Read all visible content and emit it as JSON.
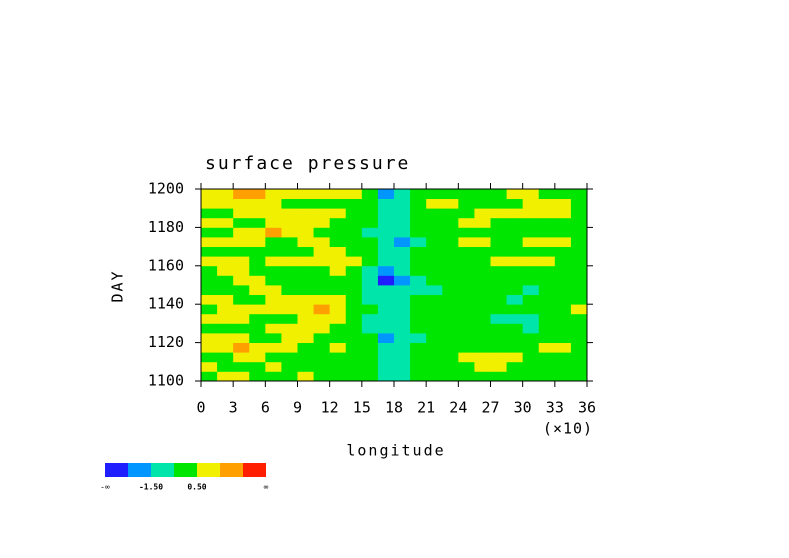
{
  "chart_data": {
    "type": "heatmap",
    "title": "surface pressure",
    "xlabel": "longitude",
    "xlabel_note": "(×10)",
    "ylabel": "DAY",
    "xlim": [
      0,
      36
    ],
    "ylim": [
      1100,
      1200
    ],
    "xticks": [
      0,
      3,
      6,
      9,
      12,
      15,
      18,
      21,
      24,
      27,
      30,
      33,
      36
    ],
    "yticks": [
      1100,
      1120,
      1140,
      1160,
      1180,
      1200
    ],
    "xbins": [
      0,
      1.5,
      3,
      4.5,
      6,
      7.5,
      9,
      10.5,
      12,
      13.5,
      15,
      16.5,
      18,
      19.5,
      21,
      22.5,
      24,
      25.5,
      27,
      28.5,
      30,
      31.5,
      33,
      34.5,
      36
    ],
    "ybins": [
      1100,
      1105,
      1110,
      1115,
      1120,
      1125,
      1130,
      1135,
      1140,
      1145,
      1150,
      1155,
      1160,
      1165,
      1170,
      1175,
      1180,
      1185,
      1190,
      1195,
      1200
    ],
    "values": [
      [
        0,
        1,
        1,
        0,
        0,
        0,
        1,
        0,
        0,
        0,
        0,
        -1,
        -1,
        0,
        0,
        0,
        0,
        0,
        0,
        0,
        0,
        0,
        0,
        0
      ],
      [
        1,
        0,
        0,
        0,
        1,
        0,
        0,
        0,
        0,
        0,
        0,
        -1,
        -1,
        0,
        0,
        0,
        0,
        1,
        1,
        0,
        0,
        0,
        0,
        0
      ],
      [
        0,
        0,
        1,
        1,
        0,
        0,
        0,
        0,
        0,
        0,
        0,
        -1,
        -1,
        0,
        0,
        0,
        1,
        1,
        1,
        1,
        0,
        0,
        0,
        0
      ],
      [
        1,
        1,
        2,
        1,
        1,
        1,
        0,
        0,
        1,
        0,
        0,
        -1,
        -1,
        0,
        0,
        0,
        0,
        0,
        0,
        0,
        0,
        1,
        1,
        0
      ],
      [
        1,
        1,
        1,
        0,
        0,
        1,
        1,
        0,
        0,
        0,
        0,
        -2,
        -1,
        -1,
        0,
        0,
        0,
        0,
        0,
        0,
        0,
        0,
        0,
        0
      ],
      [
        0,
        0,
        0,
        0,
        1,
        1,
        1,
        1,
        0,
        0,
        -1,
        -1,
        -1,
        0,
        0,
        0,
        0,
        0,
        0,
        0,
        -1,
        0,
        0,
        0
      ],
      [
        1,
        1,
        1,
        0,
        0,
        0,
        1,
        1,
        1,
        0,
        -1,
        -1,
        -1,
        0,
        0,
        0,
        0,
        0,
        -1,
        -1,
        -1,
        0,
        0,
        0
      ],
      [
        0,
        1,
        1,
        1,
        1,
        1,
        1,
        2,
        1,
        0,
        0,
        -1,
        -1,
        0,
        0,
        0,
        0,
        0,
        0,
        0,
        0,
        0,
        0,
        1
      ],
      [
        1,
        1,
        0,
        0,
        1,
        1,
        1,
        1,
        1,
        0,
        -1,
        -1,
        -1,
        0,
        0,
        0,
        0,
        0,
        0,
        -1,
        0,
        0,
        0,
        0
      ],
      [
        0,
        0,
        0,
        1,
        1,
        0,
        0,
        0,
        0,
        0,
        -1,
        -1,
        -1,
        -1,
        -1,
        0,
        0,
        0,
        0,
        0,
        -1,
        0,
        0,
        0
      ],
      [
        0,
        0,
        1,
        1,
        0,
        0,
        0,
        0,
        0,
        0,
        -1,
        -3,
        -2,
        -1,
        0,
        0,
        0,
        0,
        0,
        0,
        0,
        0,
        0,
        0
      ],
      [
        0,
        1,
        1,
        0,
        0,
        0,
        0,
        0,
        1,
        0,
        -1,
        -2,
        -1,
        0,
        0,
        0,
        0,
        0,
        0,
        0,
        0,
        0,
        0,
        0
      ],
      [
        1,
        1,
        1,
        0,
        1,
        1,
        1,
        1,
        1,
        1,
        0,
        -1,
        -1,
        0,
        0,
        0,
        0,
        0,
        1,
        1,
        1,
        1,
        0,
        0
      ],
      [
        0,
        0,
        0,
        0,
        0,
        0,
        0,
        1,
        1,
        0,
        0,
        -1,
        -1,
        0,
        0,
        0,
        0,
        0,
        0,
        0,
        0,
        0,
        0,
        0
      ],
      [
        1,
        1,
        1,
        1,
        0,
        0,
        1,
        1,
        0,
        0,
        0,
        -1,
        -2,
        -1,
        0,
        0,
        1,
        1,
        0,
        0,
        1,
        1,
        1,
        0
      ],
      [
        0,
        0,
        1,
        1,
        2,
        1,
        1,
        0,
        0,
        0,
        -1,
        -1,
        -1,
        0,
        0,
        0,
        0,
        0,
        0,
        0,
        0,
        0,
        0,
        0
      ],
      [
        1,
        1,
        0,
        0,
        1,
        1,
        1,
        1,
        0,
        0,
        0,
        -1,
        -1,
        0,
        0,
        0,
        1,
        1,
        0,
        0,
        0,
        0,
        0,
        0
      ],
      [
        0,
        0,
        1,
        1,
        1,
        1,
        1,
        1,
        1,
        0,
        0,
        -1,
        -1,
        0,
        0,
        0,
        0,
        1,
        1,
        1,
        1,
        1,
        1,
        0
      ],
      [
        1,
        1,
        1,
        1,
        1,
        0,
        0,
        0,
        0,
        0,
        0,
        -1,
        -1,
        0,
        1,
        1,
        0,
        0,
        0,
        0,
        1,
        1,
        1,
        0
      ],
      [
        1,
        1,
        2,
        2,
        1,
        1,
        1,
        1,
        1,
        1,
        0,
        -2,
        -1,
        0,
        0,
        0,
        0,
        0,
        0,
        1,
        1,
        0,
        0,
        0
      ]
    ],
    "colorbar": {
      "colors": [
        "#1e1eff",
        "#0096ff",
        "#00e6aa",
        "#00e600",
        "#f0f000",
        "#ffa000",
        "#ff1e00"
      ],
      "ticks": [
        {
          "value": -1.5,
          "label": "-1.50"
        },
        {
          "value": 0.5,
          "label": "0.50"
        }
      ],
      "ends": [
        "-∞",
        "∞"
      ]
    }
  }
}
